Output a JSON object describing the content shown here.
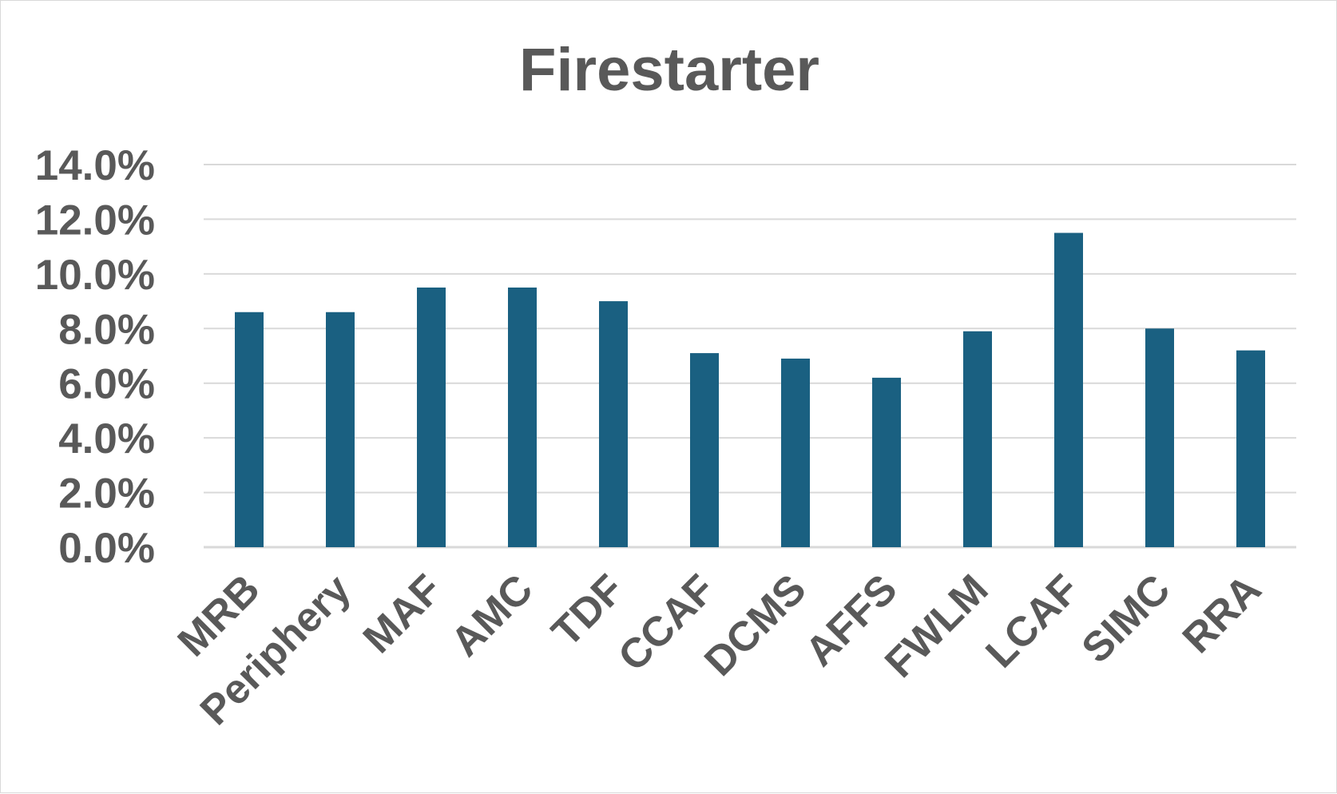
{
  "chart_data": {
    "type": "bar",
    "title": "Firestarter",
    "xlabel": "",
    "ylabel": "",
    "categories": [
      "MRB",
      "Periphery",
      "MAF",
      "AMC",
      "TDF",
      "CCAF",
      "DCMS",
      "AFFS",
      "FWLM",
      "LCAF",
      "SIMC",
      "RRA"
    ],
    "values": [
      8.6,
      8.6,
      9.5,
      9.5,
      9.0,
      7.1,
      6.9,
      6.2,
      7.9,
      11.5,
      8.0,
      7.2
    ],
    "value_format": "percent",
    "ylim": [
      0,
      14
    ],
    "yticks": [
      0,
      2,
      4,
      6,
      8,
      10,
      12,
      14
    ],
    "ytick_labels": [
      "0.0%",
      "2.0%",
      "4.0%",
      "6.0%",
      "8.0%",
      "10.0%",
      "12.0%",
      "14.0%"
    ],
    "grid": true,
    "legend": "none",
    "colors": {
      "bar": "#1a6081",
      "text": "#595959",
      "grid": "#d9d9d9",
      "frame": "#d9d9d9"
    }
  }
}
